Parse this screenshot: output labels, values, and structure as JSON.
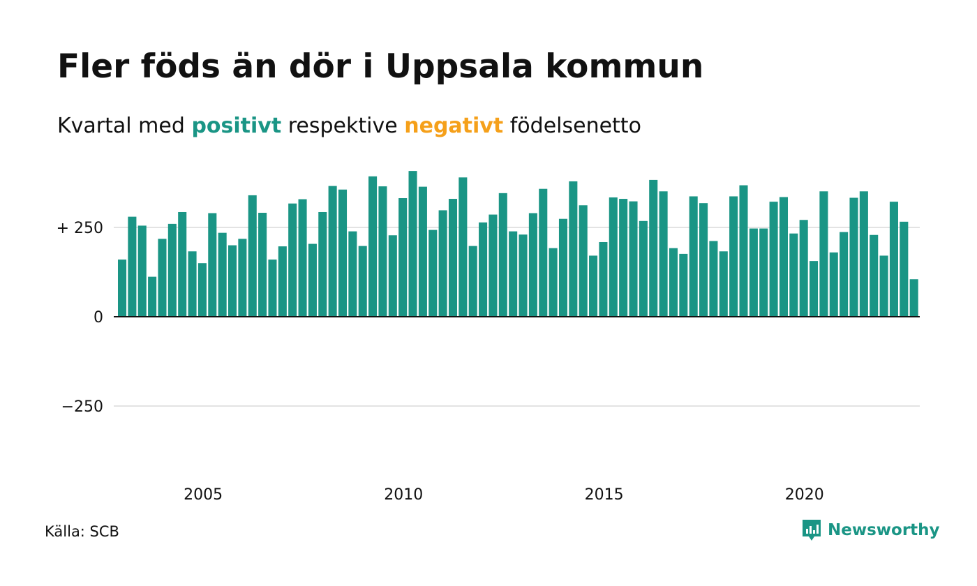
{
  "title": "Fler föds än dör i Uppsala kommun",
  "subtitle": {
    "prefix": "Kvartal med",
    "positive_word": "positivt",
    "middle": "respektive",
    "negative_word": "negativt",
    "suffix": "födelsenetto"
  },
  "source": "Källa: SCB",
  "brand": "Newsworthy",
  "colors": {
    "positive": "#1a9585",
    "negative": "#f5a01a",
    "grid": "#e3e3e3",
    "axis": "#111111"
  },
  "chart_data": {
    "type": "bar",
    "x_start": 2003.0,
    "x_step": 0.25,
    "values": [
      160,
      280,
      255,
      112,
      218,
      260,
      293,
      183,
      150,
      290,
      235,
      200,
      218,
      340,
      291,
      160,
      197,
      317,
      329,
      204,
      293,
      366,
      356,
      239,
      198,
      393,
      365,
      228,
      332,
      408,
      364,
      243,
      298,
      330,
      390,
      198,
      264,
      286,
      346,
      239,
      230,
      290,
      358,
      192,
      274,
      379,
      312,
      171,
      209,
      334,
      330,
      323,
      268,
      383,
      351,
      192,
      176,
      337,
      318,
      212,
      183,
      337,
      368,
      247,
      247,
      322,
      335,
      233,
      271,
      156,
      351,
      180,
      237,
      333,
      351,
      229,
      171,
      322,
      266,
      105
    ],
    "ylim": [
      -400,
      420
    ],
    "y_ticks": [
      {
        "value": 250,
        "label": "+ 250"
      },
      {
        "value": 0,
        "label": "0"
      },
      {
        "value": -250,
        "label": "−250"
      }
    ],
    "x_ticks": [
      {
        "value": 2005,
        "label": "2005"
      },
      {
        "value": 2010,
        "label": "2010"
      },
      {
        "value": 2015,
        "label": "2015"
      },
      {
        "value": 2020,
        "label": "2020"
      }
    ],
    "grid": true
  }
}
